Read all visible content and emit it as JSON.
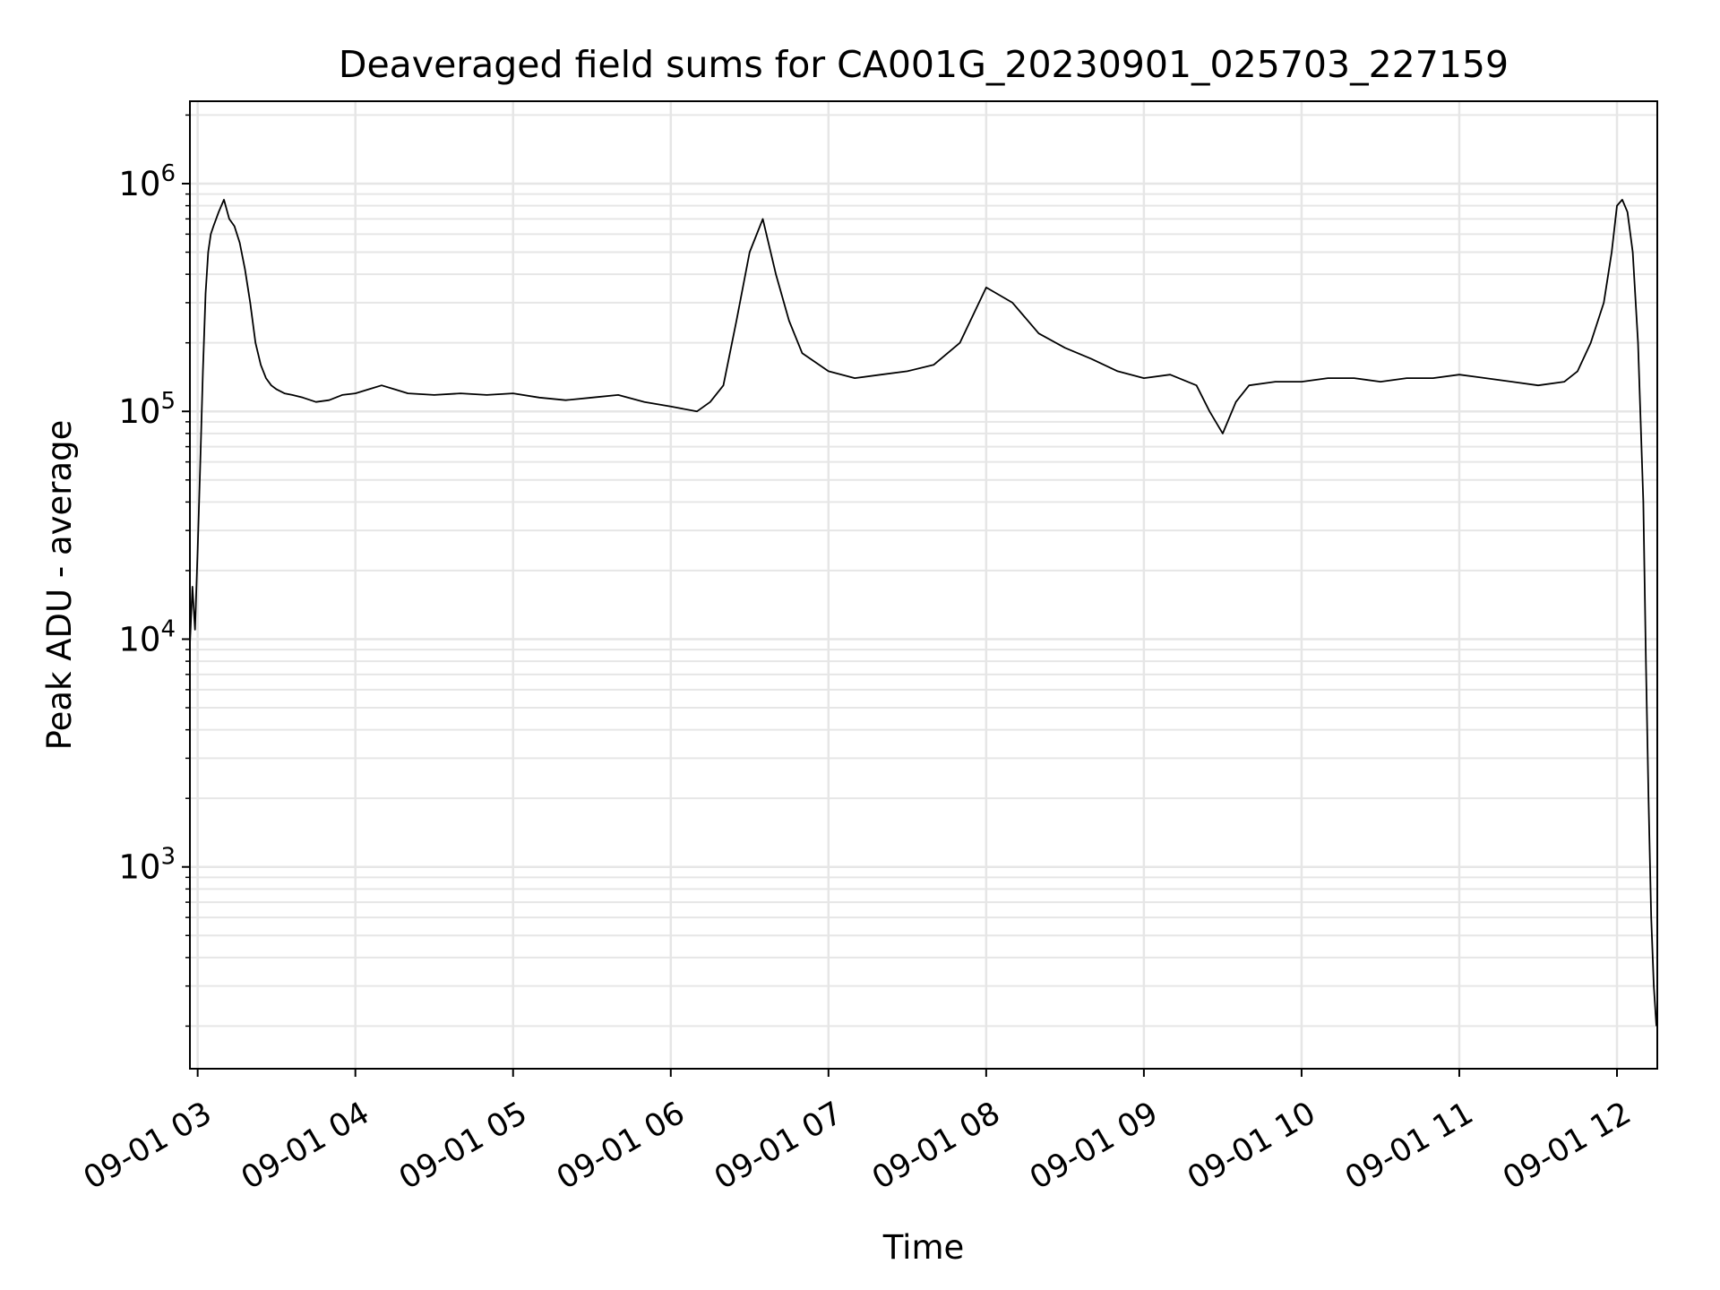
{
  "chart_data": {
    "type": "line",
    "title": "Deaveraged field sums for CA001G_20230901_025703_227159",
    "xlabel": "Time",
    "ylabel": "Peak ADU - average",
    "yscale": "log",
    "ylim": [
      130,
      2300000
    ],
    "xlim": [
      "2023-09-01 02:57:03",
      "2023-09-01 12:15:20"
    ],
    "grid": true,
    "grid_style": "major and minor",
    "x_ticks": [
      {
        "x": "2023-09-01 03:00",
        "label": "09-01 03"
      },
      {
        "x": "2023-09-01 04:00",
        "label": "09-01 04"
      },
      {
        "x": "2023-09-01 05:00",
        "label": "09-01 05"
      },
      {
        "x": "2023-09-01 06:00",
        "label": "09-01 06"
      },
      {
        "x": "2023-09-01 07:00",
        "label": "09-01 07"
      },
      {
        "x": "2023-09-01 08:00",
        "label": "09-01 08"
      },
      {
        "x": "2023-09-01 09:00",
        "label": "09-01 09"
      },
      {
        "x": "2023-09-01 10:00",
        "label": "09-01 10"
      },
      {
        "x": "2023-09-01 11:00",
        "label": "09-01 11"
      },
      {
        "x": "2023-09-01 12:00",
        "label": "09-01 12"
      }
    ],
    "y_ticks": [
      {
        "value": 1000,
        "base": "10",
        "exp": "3"
      },
      {
        "value": 10000,
        "base": "10",
        "exp": "4"
      },
      {
        "value": 100000,
        "base": "10",
        "exp": "5"
      },
      {
        "value": 1000000,
        "base": "10",
        "exp": "6"
      }
    ],
    "line_color": "#000000",
    "grid_color": "#e6e6e6",
    "series": [
      {
        "x": [
          "2023-09-01 02:57:03",
          "2023-09-01 02:58:00",
          "2023-09-01 02:59:00",
          "2023-09-01 03:00:00",
          "2023-09-01 03:01:00",
          "2023-09-01 03:02:00",
          "2023-09-01 03:03:00",
          "2023-09-01 03:04:00",
          "2023-09-01 03:05:00",
          "2023-09-01 03:06:00",
          "2023-09-01 03:08:00",
          "2023-09-01 03:10:00",
          "2023-09-01 03:12:00",
          "2023-09-01 03:14:00",
          "2023-09-01 03:16:00",
          "2023-09-01 03:18:00",
          "2023-09-01 03:20:00",
          "2023-09-01 03:22:00",
          "2023-09-01 03:24:00",
          "2023-09-01 03:26:00",
          "2023-09-01 03:28:00",
          "2023-09-01 03:30:00",
          "2023-09-01 03:33:00",
          "2023-09-01 03:36:00",
          "2023-09-01 03:40:00",
          "2023-09-01 03:45:00",
          "2023-09-01 03:50:00",
          "2023-09-01 03:55:00",
          "2023-09-01 04:00:00",
          "2023-09-01 04:05:00",
          "2023-09-01 04:10:00",
          "2023-09-01 04:15:00",
          "2023-09-01 04:20:00",
          "2023-09-01 04:30:00",
          "2023-09-01 04:40:00",
          "2023-09-01 04:50:00",
          "2023-09-01 05:00:00",
          "2023-09-01 05:10:00",
          "2023-09-01 05:20:00",
          "2023-09-01 05:30:00",
          "2023-09-01 05:40:00",
          "2023-09-01 05:50:00",
          "2023-09-01 06:00:00",
          "2023-09-01 06:10:00",
          "2023-09-01 06:15:00",
          "2023-09-01 06:20:00",
          "2023-09-01 06:25:00",
          "2023-09-01 06:30:00",
          "2023-09-01 06:35:00",
          "2023-09-01 06:40:00",
          "2023-09-01 06:45:00",
          "2023-09-01 06:50:00",
          "2023-09-01 07:00:00",
          "2023-09-01 07:10:00",
          "2023-09-01 07:20:00",
          "2023-09-01 07:30:00",
          "2023-09-01 07:40:00",
          "2023-09-01 07:50:00",
          "2023-09-01 08:00:00",
          "2023-09-01 08:10:00",
          "2023-09-01 08:20:00",
          "2023-09-01 08:30:00",
          "2023-09-01 08:40:00",
          "2023-09-01 08:50:00",
          "2023-09-01 09:00:00",
          "2023-09-01 09:10:00",
          "2023-09-01 09:20:00",
          "2023-09-01 09:25:00",
          "2023-09-01 09:30:00",
          "2023-09-01 09:35:00",
          "2023-09-01 09:40:00",
          "2023-09-01 09:50:00",
          "2023-09-01 10:00:00",
          "2023-09-01 10:10:00",
          "2023-09-01 10:20:00",
          "2023-09-01 10:30:00",
          "2023-09-01 10:40:00",
          "2023-09-01 10:50:00",
          "2023-09-01 11:00:00",
          "2023-09-01 11:10:00",
          "2023-09-01 11:20:00",
          "2023-09-01 11:30:00",
          "2023-09-01 11:40:00",
          "2023-09-01 11:45:00",
          "2023-09-01 11:50:00",
          "2023-09-01 11:55:00",
          "2023-09-01 11:58:00",
          "2023-09-01 12:00:00",
          "2023-09-01 12:02:00",
          "2023-09-01 12:04:00",
          "2023-09-01 12:06:00",
          "2023-09-01 12:08:00",
          "2023-09-01 12:10:00",
          "2023-09-01 12:11:00",
          "2023-09-01 12:12:00",
          "2023-09-01 12:13:00",
          "2023-09-01 12:14:00",
          "2023-09-01 12:15:00"
        ],
        "values": [
          9500,
          17000,
          11000,
          25000,
          60000,
          150000,
          330000,
          500000,
          600000,
          650000,
          750000,
          850000,
          700000,
          650000,
          550000,
          420000,
          300000,
          200000,
          160000,
          140000,
          130000,
          125000,
          120000,
          118000,
          115000,
          110000,
          112000,
          118000,
          120000,
          125000,
          130000,
          125000,
          120000,
          118000,
          120000,
          118000,
          120000,
          115000,
          112000,
          115000,
          118000,
          110000,
          105000,
          100000,
          110000,
          130000,
          250000,
          500000,
          700000,
          400000,
          250000,
          180000,
          150000,
          140000,
          145000,
          150000,
          160000,
          200000,
          350000,
          300000,
          220000,
          190000,
          170000,
          150000,
          140000,
          145000,
          130000,
          100000,
          80000,
          110000,
          130000,
          135000,
          135000,
          140000,
          140000,
          135000,
          140000,
          140000,
          145000,
          140000,
          135000,
          130000,
          135000,
          150000,
          200000,
          300000,
          500000,
          800000,
          850000,
          750000,
          500000,
          200000,
          40000,
          8000,
          2000,
          600,
          300,
          200
        ]
      }
    ]
  }
}
